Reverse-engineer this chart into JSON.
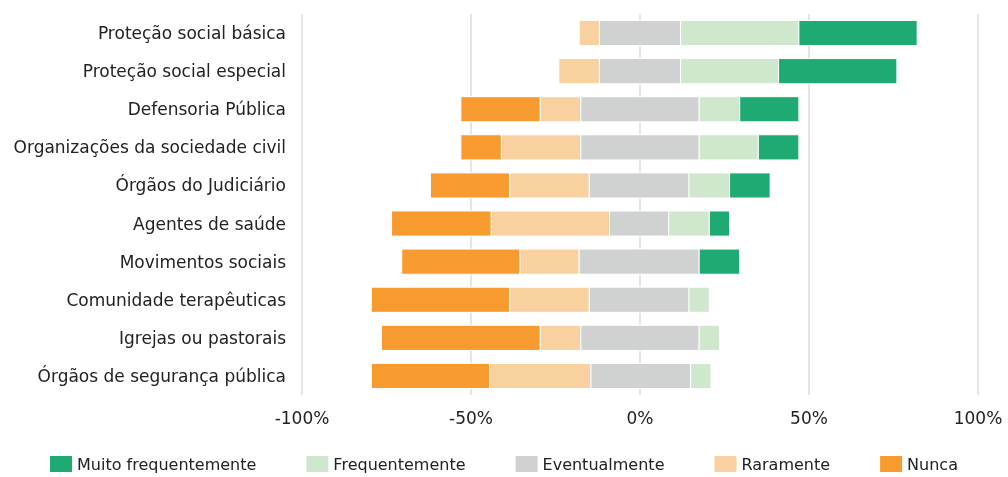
{
  "chart_data": {
    "type": "bar",
    "orientation": "horizontal",
    "categories": [
      "Proteção social básica",
      "Proteção social especial",
      "Defensoria Pública",
      "Organizações da sociedade civil",
      "Órgãos do Judiciário",
      "Agentes de saúde",
      "Movimentos sociais",
      "Comunidade terapêuticas",
      "Igrejas ou pastorais",
      "Órgãos de segurança pública"
    ],
    "series": [
      {
        "name": "Nunca",
        "color": "#f79a30",
        "base": [
          null,
          null,
          -53,
          -53,
          -62,
          -73.5,
          -70.5,
          -79.5,
          -76.5,
          -79.5
        ],
        "values": [
          null,
          null,
          23.5,
          12,
          23.5,
          29.5,
          35,
          41,
          47,
          35
        ]
      },
      {
        "name": "Raramente",
        "color": "#f9d1a0",
        "base": [
          -18,
          -24,
          -29.5,
          -41,
          -38.5,
          -44,
          -35.5,
          -38.5,
          -29.5,
          -44.5
        ],
        "values": [
          6,
          12,
          12,
          23.5,
          23.5,
          35,
          17.5,
          23.5,
          12,
          30
        ]
      },
      {
        "name": "Eventualmente",
        "color": "#d0d1d1",
        "base": [
          -12,
          -12,
          -17.5,
          -17.5,
          -15,
          -9,
          -18,
          -15,
          -17.5,
          -14.5
        ],
        "values": [
          24,
          24,
          35,
          35,
          29.5,
          17.5,
          35.5,
          29.5,
          35,
          29.5
        ]
      },
      {
        "name": "Frequentemente",
        "color": "#cfe7cc",
        "base": [
          12,
          12,
          17.5,
          17.5,
          14.5,
          8.5,
          null,
          14.5,
          17.5,
          15
        ],
        "values": [
          35,
          29,
          12,
          17.5,
          12,
          12,
          null,
          6,
          6,
          6
        ]
      },
      {
        "name": "Muito frequentemente",
        "color": "#1faa73",
        "base": [
          47,
          41,
          29.5,
          35,
          26.5,
          20.5,
          17.5,
          null,
          null,
          null
        ],
        "values": [
          35,
          35,
          17.5,
          12,
          12,
          6,
          12,
          null,
          null,
          null
        ]
      }
    ],
    "xlim": [
      -100,
      100
    ],
    "xticks": [
      {
        "value": -100,
        "label": "-100%"
      },
      {
        "value": -50,
        "label": "-50%"
      },
      {
        "value": 0,
        "label": "0%"
      },
      {
        "value": 50,
        "label": "50%"
      },
      {
        "value": 100,
        "label": "100%"
      }
    ],
    "grid": "x",
    "legend": "bottom"
  }
}
